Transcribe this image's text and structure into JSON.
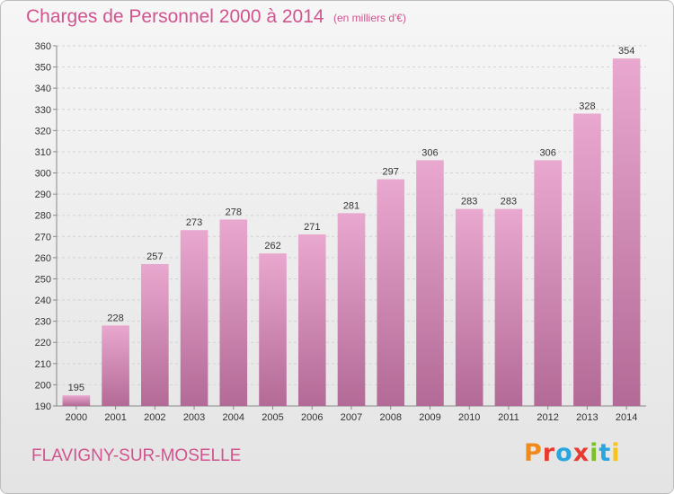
{
  "header": {
    "title": "Charges de Personnel 2000 à 2014",
    "subtitle": "(en milliers d'€)"
  },
  "footer": {
    "commune": "FLAVIGNY-SUR-MOSELLE",
    "logo_text": "Proxiti",
    "logo_colors": [
      "#f08a1c",
      "#e83a2f",
      "#2aa6de",
      "#e83a2f",
      "#7dbf26",
      "#2aa6de",
      "#f6c31a"
    ]
  },
  "colors": {
    "accent": "#d1548f",
    "bar_top": "#e9a8cf",
    "bar_bottom": "#b36a96"
  },
  "chart_data": {
    "type": "bar",
    "categories": [
      "2000",
      "2001",
      "2002",
      "2003",
      "2004",
      "2005",
      "2006",
      "2007",
      "2008",
      "2009",
      "2010",
      "2011",
      "2012",
      "2013",
      "2014"
    ],
    "values": [
      195,
      228,
      257,
      273,
      278,
      262,
      271,
      281,
      297,
      306,
      283,
      283,
      306,
      328,
      354
    ],
    "ylim": [
      190,
      360
    ],
    "yticks": [
      190,
      200,
      210,
      220,
      230,
      240,
      250,
      260,
      270,
      280,
      290,
      300,
      310,
      320,
      330,
      340,
      350,
      360
    ],
    "grid": true,
    "legend": "none"
  }
}
